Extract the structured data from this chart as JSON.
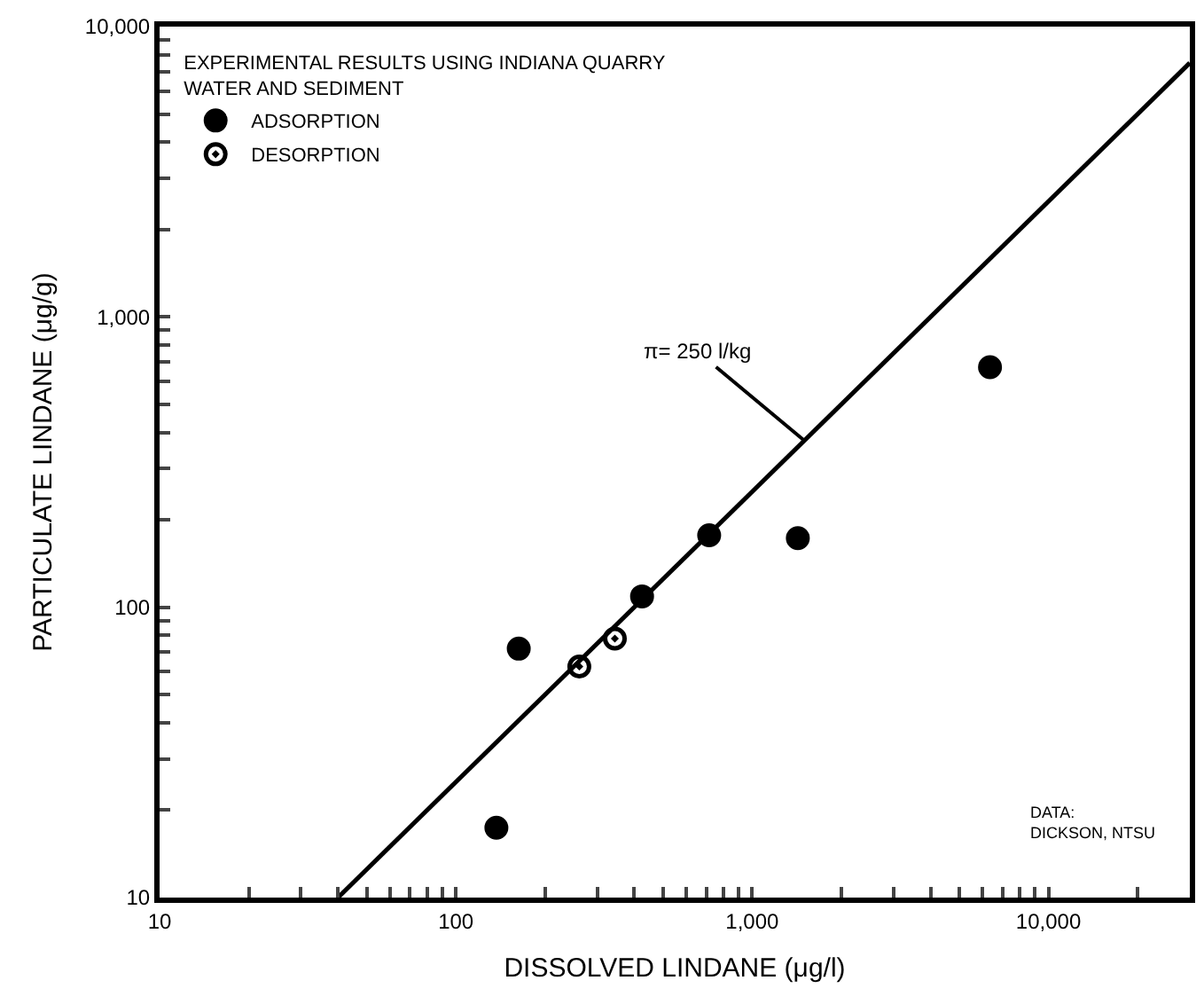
{
  "chart_data": {
    "type": "scatter",
    "xlabel": "DISSOLVED LINDANE (μg/l)",
    "ylabel": "PARTICULATE LINDANE (μg/g)",
    "legend_title": "EXPERIMENTAL RESULTS USING INDIANA QUARRY WATER AND SEDIMENT",
    "log": "xy",
    "legend": "top left",
    "xlim": [
      10,
      30000
    ],
    "ylim": [
      10,
      10000
    ],
    "xticks": [
      10,
      {
        "value": 20,
        "label": null
      },
      {
        "value": 30,
        "label": null
      },
      {
        "value": 40,
        "label": null
      },
      {
        "value": 50,
        "label": null
      },
      {
        "value": 60,
        "label": null
      },
      {
        "value": 70,
        "label": null
      },
      {
        "value": 80,
        "label": null
      },
      {
        "value": 90,
        "label": null
      },
      100,
      {
        "value": 200,
        "label": null
      },
      {
        "value": 300,
        "label": null
      },
      {
        "value": 400,
        "label": null
      },
      {
        "value": 500,
        "label": null
      },
      {
        "value": 600,
        "label": null
      },
      {
        "value": 700,
        "label": null
      },
      {
        "value": 800,
        "label": null
      },
      {
        "value": 900,
        "label": null
      },
      {
        "value": 1000,
        "label": "1,000"
      },
      {
        "value": 2000,
        "label": null
      },
      {
        "value": 3000,
        "label": null
      },
      {
        "value": 4000,
        "label": null
      },
      {
        "value": 5000,
        "label": null
      },
      {
        "value": 6000,
        "label": null
      },
      {
        "value": 7000,
        "label": null
      },
      {
        "value": 8000,
        "label": null
      },
      {
        "value": 9000,
        "label": null
      },
      {
        "value": 10000,
        "label": "10,000"
      },
      {
        "value": 20000,
        "label": null
      }
    ],
    "yticks": [
      10,
      {
        "value": 20,
        "label": null
      },
      {
        "value": 30,
        "label": null
      },
      {
        "value": 40,
        "label": null
      },
      {
        "value": 50,
        "label": null
      },
      {
        "value": 60,
        "label": null
      },
      {
        "value": 70,
        "label": null
      },
      {
        "value": 80,
        "label": null
      },
      {
        "value": 90,
        "label": null
      },
      100,
      {
        "value": 200,
        "label": null
      },
      {
        "value": 300,
        "label": null
      },
      {
        "value": 400,
        "label": null
      },
      {
        "value": 500,
        "label": null
      },
      {
        "value": 600,
        "label": null
      },
      {
        "value": 700,
        "label": null
      },
      {
        "value": 800,
        "label": null
      },
      {
        "value": 900,
        "label": null
      },
      {
        "value": 1000,
        "label": "1,000"
      },
      {
        "value": 2000,
        "label": null
      },
      {
        "value": 3000,
        "label": null
      },
      {
        "value": 4000,
        "label": null
      },
      {
        "value": 5000,
        "label": null
      },
      {
        "value": 6000,
        "label": null
      },
      {
        "value": 7000,
        "label": null
      },
      {
        "value": 8000,
        "label": null
      },
      {
        "value": 9000,
        "label": null
      },
      {
        "value": 10000,
        "label": "10,000"
      }
    ],
    "series": [
      {
        "name": "ADSORPTION",
        "color": "#000000",
        "marker": "circle",
        "x": [
          137,
          163,
          425,
          716,
          1426,
          6350
        ],
        "values": [
          17.4,
          72,
          109,
          177,
          173,
          671
        ]
      },
      {
        "name": "DESORPTION",
        "color": "#000000",
        "marker": "circle-dot",
        "x": [
          261,
          344
        ],
        "values": [
          62.5,
          78
        ]
      },
      {
        "type": "line",
        "color": "#000000",
        "marker": "none",
        "line_style": "solid",
        "x": [
          40,
          30000
        ],
        "values": [
          10,
          7500
        ]
      }
    ],
    "annotations": [
      {
        "text": "π= 250 l/kg",
        "x": 1500,
        "y": 375
      },
      "DATA: DICKSON, NTSU"
    ]
  }
}
